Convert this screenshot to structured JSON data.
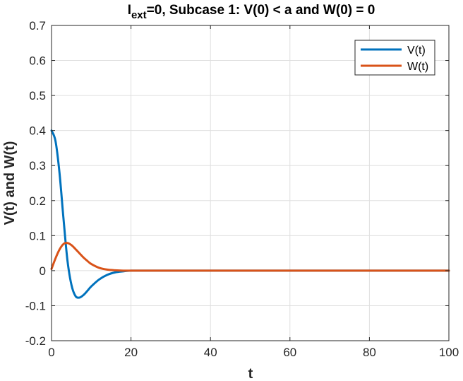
{
  "chart_data": {
    "type": "line",
    "title": {
      "main": "I",
      "subscript": "ext",
      "rest": "=0, Subcase 1: V(0) < a and W(0) = 0"
    },
    "xlabel": "t",
    "ylabel": "V(t) and W(t)",
    "xlim": [
      0,
      100
    ],
    "ylim": [
      -0.2,
      0.7
    ],
    "xticks": [
      0,
      20,
      40,
      60,
      80,
      100
    ],
    "yticks": [
      -0.2,
      -0.1,
      0,
      0.1,
      0.2,
      0.3,
      0.4,
      0.5,
      0.6,
      0.7
    ],
    "xtick_labels": [
      "0",
      "20",
      "40",
      "60",
      "80",
      "100"
    ],
    "ytick_labels": [
      "-0.2",
      "-0.1",
      "0",
      "0.1",
      "0.2",
      "0.3",
      "0.4",
      "0.5",
      "0.6",
      "0.7"
    ],
    "grid": true,
    "legend_position": "top-right",
    "series": [
      {
        "name": "V(t)",
        "color": "#0072BD",
        "x": [
          0,
          1,
          2,
          3,
          4,
          5,
          6,
          7,
          8,
          9,
          10,
          12,
          14,
          16,
          18,
          20,
          25,
          30,
          40,
          50,
          60,
          70,
          80,
          90,
          100
        ],
        "y": [
          0.4,
          0.37,
          0.28,
          0.15,
          0.03,
          -0.04,
          -0.072,
          -0.077,
          -0.07,
          -0.058,
          -0.045,
          -0.025,
          -0.012,
          -0.005,
          -0.002,
          0.0,
          0,
          0,
          0,
          0,
          0,
          0,
          0,
          0,
          0
        ]
      },
      {
        "name": "W(t)",
        "color": "#D95319",
        "x": [
          0,
          1,
          2,
          3,
          4,
          5,
          6,
          7,
          8,
          9,
          10,
          12,
          14,
          16,
          18,
          20,
          25,
          30,
          40,
          50,
          60,
          70,
          80,
          90,
          100
        ],
        "y": [
          0.005,
          0.035,
          0.06,
          0.076,
          0.079,
          0.073,
          0.062,
          0.05,
          0.038,
          0.028,
          0.019,
          0.008,
          0.003,
          0.001,
          0.0,
          0,
          0,
          0,
          0,
          0,
          0,
          0,
          0,
          0,
          0
        ]
      }
    ]
  }
}
